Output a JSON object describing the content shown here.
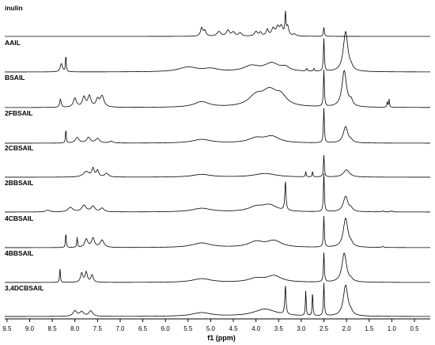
{
  "chart_data": {
    "type": "line",
    "xlabel": "f1 (ppm)",
    "xlim": [
      9.55,
      0.15
    ],
    "x_reversed": true,
    "grid": false,
    "x_ticks": [
      "9.5",
      "9.0",
      "8.5",
      "8.0",
      "7.5",
      "7.0",
      "6.5",
      "6.0",
      "5.5",
      "5.0",
      "4.5",
      "4.0",
      "3.5",
      "3.0",
      "2.5",
      "2.0",
      "1.5",
      "1.0",
      "0.5"
    ],
    "series": [
      {
        "name": "inulin",
        "peaks": [
          [
            5.2,
            0.45,
            0.03
          ],
          [
            5.13,
            0.3,
            0.03
          ],
          [
            4.82,
            0.25,
            0.05
          ],
          [
            4.62,
            0.32,
            0.04
          ],
          [
            4.5,
            0.22,
            0.04
          ],
          [
            4.35,
            0.18,
            0.04
          ],
          [
            4.0,
            0.25,
            0.04
          ],
          [
            3.9,
            0.2,
            0.03
          ],
          [
            3.75,
            0.35,
            0.03
          ],
          [
            3.62,
            0.4,
            0.04
          ],
          [
            3.52,
            0.45,
            0.04
          ],
          [
            3.44,
            0.5,
            0.04
          ],
          [
            3.35,
            1.2,
            0.012
          ],
          [
            3.3,
            0.5,
            0.03
          ],
          [
            3.15,
            0.1,
            0.04
          ],
          [
            2.5,
            0.5,
            0.012
          ]
        ]
      },
      {
        "name": "AAIL",
        "peaks": [
          [
            8.3,
            0.45,
            0.03
          ],
          [
            8.2,
            0.9,
            0.01
          ],
          [
            5.5,
            0.25,
            0.25
          ],
          [
            5.0,
            0.15,
            0.2
          ],
          [
            4.1,
            0.3,
            0.2
          ],
          [
            3.65,
            0.45,
            0.2
          ],
          [
            3.35,
            0.2,
            0.1
          ],
          [
            2.88,
            0.15,
            0.012
          ],
          [
            2.72,
            0.15,
            0.012
          ],
          [
            2.5,
            1.8,
            0.012
          ],
          [
            2.02,
            2.2,
            0.06
          ],
          [
            1.9,
            0.15,
            0.04
          ]
        ]
      },
      {
        "name": "BSAIL",
        "peaks": [
          [
            8.32,
            0.45,
            0.02
          ],
          [
            8.0,
            0.5,
            0.04
          ],
          [
            7.8,
            0.55,
            0.04
          ],
          [
            7.68,
            0.6,
            0.04
          ],
          [
            7.5,
            0.4,
            0.04
          ],
          [
            7.4,
            0.6,
            0.05
          ],
          [
            5.2,
            0.3,
            0.2
          ],
          [
            4.0,
            0.55,
            0.2
          ],
          [
            3.7,
            0.8,
            0.2
          ],
          [
            3.45,
            0.5,
            0.15
          ],
          [
            2.5,
            2.0,
            0.012
          ],
          [
            2.05,
            2.0,
            0.06
          ],
          [
            1.9,
            0.3,
            0.04
          ],
          [
            1.1,
            0.3,
            0.01
          ],
          [
            1.06,
            0.45,
            0.01
          ]
        ]
      },
      {
        "name": "2FBSAIL",
        "peaks": [
          [
            8.2,
            0.75,
            0.01
          ],
          [
            7.95,
            0.3,
            0.05
          ],
          [
            7.7,
            0.3,
            0.05
          ],
          [
            7.5,
            0.25,
            0.05
          ],
          [
            7.2,
            0.1,
            0.05
          ],
          [
            5.2,
            0.2,
            0.25
          ],
          [
            4.0,
            0.25,
            0.2
          ],
          [
            3.65,
            0.35,
            0.2
          ],
          [
            2.5,
            1.9,
            0.012
          ],
          [
            2.02,
            0.9,
            0.06
          ],
          [
            1.9,
            0.1,
            0.04
          ]
        ]
      },
      {
        "name": "2CBSAIL",
        "peaks": [
          [
            7.75,
            0.3,
            0.08
          ],
          [
            7.6,
            0.45,
            0.03
          ],
          [
            7.5,
            0.35,
            0.03
          ],
          [
            7.3,
            0.2,
            0.05
          ],
          [
            5.2,
            0.15,
            0.25
          ],
          [
            3.8,
            0.2,
            0.3
          ],
          [
            2.9,
            0.3,
            0.01
          ],
          [
            2.75,
            0.3,
            0.01
          ],
          [
            2.5,
            1.2,
            0.012
          ],
          [
            2.0,
            0.4,
            0.08
          ]
        ]
      },
      {
        "name": "2BBSAIL",
        "peaks": [
          [
            8.6,
            0.1,
            0.05
          ],
          [
            8.1,
            0.25,
            0.06
          ],
          [
            7.8,
            0.35,
            0.06
          ],
          [
            7.6,
            0.3,
            0.05
          ],
          [
            7.4,
            0.2,
            0.05
          ],
          [
            5.2,
            0.2,
            0.25
          ],
          [
            4.0,
            0.25,
            0.2
          ],
          [
            3.7,
            0.35,
            0.2
          ],
          [
            3.35,
            1.6,
            0.015
          ],
          [
            2.5,
            2.1,
            0.012
          ],
          [
            2.02,
            0.85,
            0.06
          ],
          [
            1.9,
            0.15,
            0.04
          ],
          [
            1.2,
            0.06,
            0.02
          ],
          [
            1.0,
            0.06,
            0.02
          ]
        ]
      },
      {
        "name": "4CBSAIL",
        "peaks": [
          [
            8.2,
            0.8,
            0.01
          ],
          [
            7.95,
            0.55,
            0.01
          ],
          [
            7.75,
            0.45,
            0.04
          ],
          [
            7.6,
            0.5,
            0.04
          ],
          [
            7.4,
            0.4,
            0.05
          ],
          [
            5.2,
            0.25,
            0.25
          ],
          [
            4.0,
            0.3,
            0.2
          ],
          [
            3.6,
            0.35,
            0.2
          ],
          [
            2.5,
            1.7,
            0.012
          ],
          [
            2.02,
            1.6,
            0.06
          ],
          [
            1.9,
            0.15,
            0.04
          ],
          [
            1.2,
            0.06,
            0.02
          ]
        ]
      },
      {
        "name": "4BBSAIL",
        "peaks": [
          [
            8.33,
            0.8,
            0.01
          ],
          [
            7.85,
            0.5,
            0.03
          ],
          [
            7.75,
            0.55,
            0.03
          ],
          [
            7.62,
            0.4,
            0.03
          ],
          [
            5.2,
            0.2,
            0.25
          ],
          [
            4.0,
            0.2,
            0.2
          ],
          [
            3.6,
            0.35,
            0.2
          ],
          [
            2.5,
            1.6,
            0.012
          ],
          [
            2.05,
            1.6,
            0.06
          ],
          [
            1.9,
            0.1,
            0.04
          ]
        ]
      },
      {
        "name": "3,4DCBSAIL",
        "peaks": [
          [
            8.0,
            0.3,
            0.05
          ],
          [
            7.85,
            0.25,
            0.05
          ],
          [
            7.65,
            0.3,
            0.05
          ],
          [
            5.2,
            0.2,
            0.25
          ],
          [
            3.8,
            0.4,
            0.3
          ],
          [
            3.35,
            1.6,
            0.015
          ],
          [
            2.9,
            1.4,
            0.01
          ],
          [
            2.75,
            1.3,
            0.01
          ],
          [
            2.5,
            1.8,
            0.012
          ],
          [
            2.02,
            1.7,
            0.06
          ],
          [
            1.9,
            0.15,
            0.04
          ]
        ]
      }
    ]
  }
}
